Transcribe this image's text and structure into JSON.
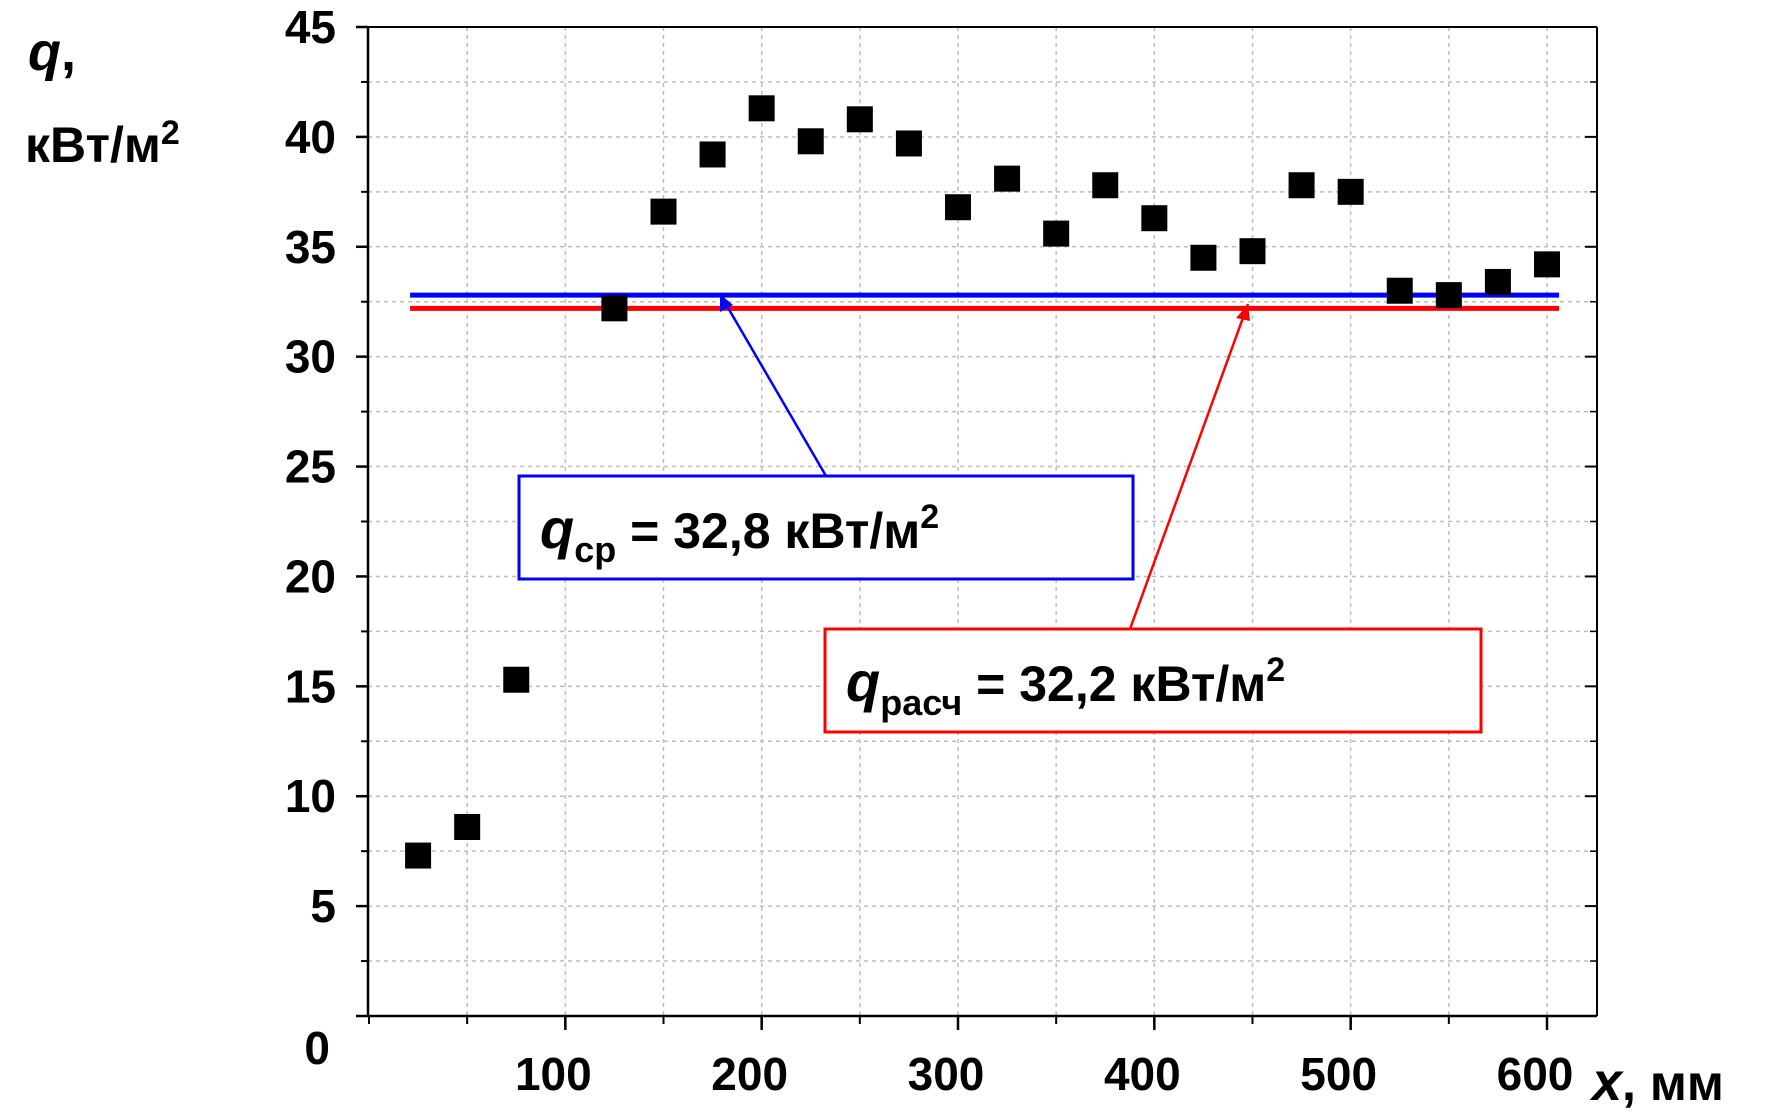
{
  "chart_data": {
    "type": "scatter",
    "y_axis_label": {
      "symbol": "q",
      "comma": ",",
      "unit_base": "кВт/м",
      "unit_exp": "2"
    },
    "x_axis_label": {
      "symbol": "x",
      "unit": ", мм"
    },
    "x_ticks": [
      "100",
      "200",
      "300",
      "400",
      "500",
      "600"
    ],
    "y_ticks": [
      "0",
      "5",
      "10",
      "15",
      "20",
      "25",
      "30",
      "35",
      "40",
      "45"
    ],
    "xlim": [
      0,
      650
    ],
    "ylim": [
      0,
      45
    ],
    "grid": true,
    "series": [
      {
        "color": "#000000",
        "marker": "square",
        "x": [
          25,
          50,
          75,
          125,
          150,
          175,
          200,
          225,
          250,
          275,
          300,
          325,
          350,
          375,
          400,
          425,
          450,
          475,
          500,
          525,
          550,
          575,
          600
        ],
        "y": [
          7.3,
          8.6,
          15.3,
          32.2,
          36.6,
          39.2,
          41.3,
          39.8,
          40.8,
          39.7,
          36.8,
          38.1,
          35.6,
          37.8,
          36.3,
          34.5,
          34.8,
          37.8,
          37.5,
          33.0,
          32.8,
          33.4,
          34.2
        ]
      }
    ],
    "reference_lines": [
      {
        "color": "#0000ff",
        "value": 32.8,
        "label_symbol": "q",
        "label_sub": "ср",
        "label_rest": " = 32,8 кВт/м",
        "label_exp": "2",
        "x_start": 25,
        "x_end": 600,
        "arrow_target_x": 180
      },
      {
        "color": "#ff0000",
        "value": 32.2,
        "label_symbol": "q",
        "label_sub": "расч",
        "label_rest": " = 32,2 кВт/м",
        "label_exp": "2",
        "x_start": 25,
        "x_end": 600,
        "arrow_target_x": 477
      }
    ]
  }
}
